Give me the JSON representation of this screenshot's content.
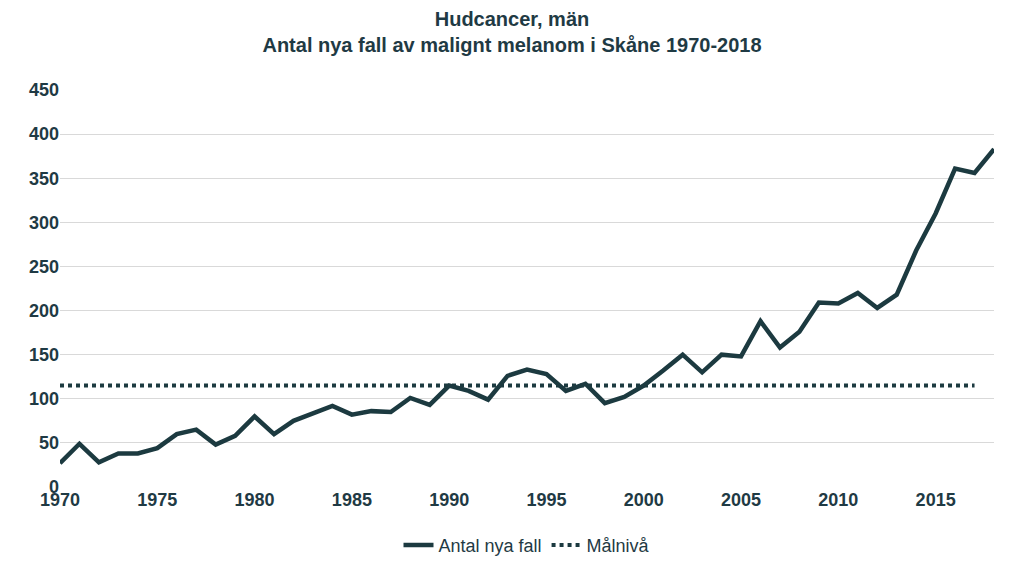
{
  "chart_data": {
    "type": "line",
    "title": "Hudcancer, män",
    "subtitle": "Antal nya fall av malignt melanom i Skåne 1970-2018",
    "x": [
      1970,
      1971,
      1972,
      1973,
      1974,
      1975,
      1976,
      1977,
      1978,
      1979,
      1980,
      1981,
      1982,
      1983,
      1984,
      1985,
      1986,
      1987,
      1988,
      1989,
      1990,
      1991,
      1992,
      1993,
      1994,
      1995,
      1996,
      1997,
      1998,
      1999,
      2000,
      2001,
      2002,
      2003,
      2004,
      2005,
      2006,
      2007,
      2008,
      2009,
      2010,
      2011,
      2012,
      2013,
      2014,
      2015,
      2016,
      2017,
      2018
    ],
    "series": [
      {
        "name": "Antal nya fall",
        "color": "#1c3a40",
        "line_style": "solid",
        "values": [
          27,
          49,
          28,
          38,
          38,
          44,
          60,
          65,
          48,
          58,
          80,
          60,
          75,
          84,
          92,
          82,
          86,
          85,
          101,
          93,
          115,
          109,
          99,
          126,
          133,
          128,
          109,
          117,
          95,
          102,
          115,
          132,
          150,
          130,
          150,
          148,
          188,
          158,
          176,
          209,
          208,
          220,
          203,
          218,
          268,
          310,
          361,
          356,
          383
        ]
      },
      {
        "name": "Målnivå",
        "color": "#1c3a40",
        "line_style": "dotted",
        "values": [
          115,
          115,
          115,
          115,
          115,
          115,
          115,
          115,
          115,
          115,
          115,
          115,
          115,
          115,
          115,
          115,
          115,
          115,
          115,
          115,
          115,
          115,
          115,
          115,
          115,
          115,
          115,
          115,
          115,
          115,
          115,
          115,
          115,
          115,
          115,
          115,
          115,
          115,
          115,
          115,
          115,
          115,
          115,
          115,
          115,
          115,
          115,
          115,
          null
        ]
      }
    ],
    "xlim": [
      1970,
      2018
    ],
    "xticks": [
      1970,
      1975,
      1980,
      1985,
      1990,
      1995,
      2000,
      2005,
      2010,
      2015
    ],
    "ylim": [
      0,
      450
    ],
    "yticks": [
      0,
      50,
      100,
      150,
      200,
      250,
      300,
      350,
      400,
      450
    ],
    "grid": true,
    "legend": "bottom"
  }
}
